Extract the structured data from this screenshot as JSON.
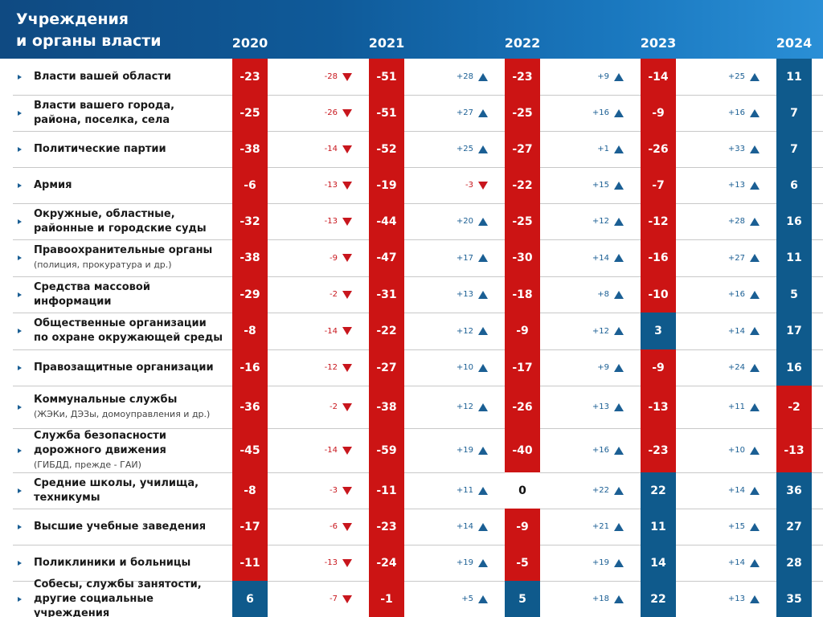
{
  "header": {
    "title_line1": "Учреждения",
    "title_line2": "и органы власти"
  },
  "colors": {
    "negative": "#cc1414",
    "positive": "#0f5a8c",
    "zero": "#ffffff",
    "delta_neg": "#c8161d",
    "delta_pos": "#1b5f94"
  },
  "chart_data": {
    "type": "table",
    "title": "Учреждения и органы власти",
    "years": [
      "2020",
      "2021",
      "2022",
      "2023",
      "2024"
    ],
    "rows": [
      {
        "label": "Власти вашей области",
        "note": "",
        "values": [
          -23,
          -51,
          -23,
          -14,
          11
        ],
        "deltas": [
          "-28",
          "+28",
          "+9",
          "+25"
        ]
      },
      {
        "label": "Власти вашего города, района, поселка, села",
        "note": "",
        "values": [
          -25,
          -51,
          -25,
          -9,
          7
        ],
        "deltas": [
          "-26",
          "+27",
          "+16",
          "+16"
        ]
      },
      {
        "label": "Политические партии",
        "note": "",
        "values": [
          -38,
          -52,
          -27,
          -26,
          7
        ],
        "deltas": [
          "-14",
          "+25",
          "+1",
          "+33"
        ]
      },
      {
        "label": "Армия",
        "note": "",
        "values": [
          -6,
          -19,
          -22,
          -7,
          6
        ],
        "deltas": [
          "-13",
          "-3",
          "+15",
          "+13"
        ]
      },
      {
        "label": "Окружные, областные, районные  и городские суды",
        "note": "",
        "values": [
          -32,
          -44,
          -25,
          -12,
          16
        ],
        "deltas": [
          "-13",
          "+20",
          "+12",
          "+28"
        ]
      },
      {
        "label": "Правоохранительные органы",
        "note": "(полиция, прокуратура и др.)",
        "values": [
          -38,
          -47,
          -30,
          -16,
          11
        ],
        "deltas": [
          "-9",
          "+17",
          "+14",
          "+27"
        ]
      },
      {
        "label": "Средства массовой информации",
        "note": "",
        "values": [
          -29,
          -31,
          -18,
          -10,
          5
        ],
        "deltas": [
          "-2",
          "+13",
          "+8",
          "+16"
        ]
      },
      {
        "label": "Общественные организации по охране окружающей среды",
        "note": "",
        "values": [
          -8,
          -22,
          -9,
          3,
          17
        ],
        "deltas": [
          "-14",
          "+12",
          "+12",
          "+14"
        ]
      },
      {
        "label": "Правозащитные организации",
        "note": "",
        "values": [
          -16,
          -27,
          -17,
          -9,
          16
        ],
        "deltas": [
          "-12",
          "+10",
          "+9",
          "+24"
        ]
      },
      {
        "label": "Коммунальные службы",
        "note": "(ЖЭКи, ДЭЗы, домоуправления и др.)",
        "values": [
          -36,
          -38,
          -26,
          -13,
          -2
        ],
        "deltas": [
          "-2",
          "+12",
          "+13",
          "+11"
        ]
      },
      {
        "label": "Служба безопасности дорожного движения",
        "note": "(ГИБДД, прежде - ГАИ)",
        "values": [
          -45,
          -59,
          -40,
          -23,
          -13
        ],
        "deltas": [
          "-14",
          "+19",
          "+16",
          "+10"
        ]
      },
      {
        "label": "Средние школы, училища, техникумы",
        "note": "",
        "values": [
          -8,
          -11,
          0,
          22,
          36
        ],
        "deltas": [
          "-3",
          "+11",
          "+22",
          "+14"
        ]
      },
      {
        "label": "Высшие учебные заведения",
        "note": "",
        "values": [
          -17,
          -23,
          -9,
          11,
          27
        ],
        "deltas": [
          "-6",
          "+14",
          "+21",
          "+15"
        ]
      },
      {
        "label": "Поликлиники и больницы",
        "note": "",
        "values": [
          -11,
          -24,
          -5,
          14,
          28
        ],
        "deltas": [
          "-13",
          "+19",
          "+19",
          "+14"
        ]
      },
      {
        "label": "Собесы, службы занятости, другие социальные учреждения",
        "note": "",
        "values": [
          6,
          -1,
          5,
          22,
          35
        ],
        "deltas": [
          "-7",
          "+5",
          "+18",
          "+13"
        ]
      }
    ]
  }
}
